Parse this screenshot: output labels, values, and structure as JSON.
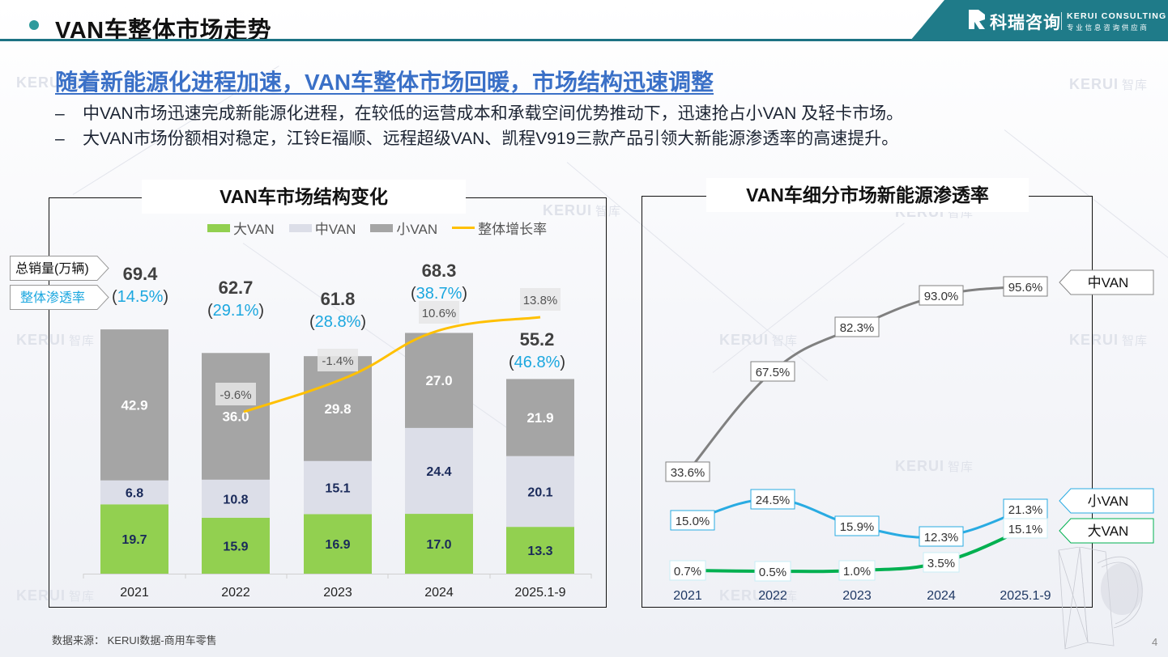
{
  "header": {
    "title": "VAN车整体市场走势",
    "brand_cn": "科瑞咨询",
    "brand_en": "KERUI CONSULTING",
    "brand_sub": "专业信息咨询供应商",
    "accent_color": "#1f7b89"
  },
  "headline": "随着新能源化进程加速，VAN车整体市场回暖，市场结构迅速调整",
  "bullets": [
    {
      "dash": "–",
      "text": "中VAN市场迅速完成新能源化进程，在较低的运营成本和承载空间优势推动下，迅速抢占小VAN 及轻卡市场。"
    },
    {
      "dash": "–",
      "text": "大VAN市场份额相对稳定，江铃E福顺、远程超级VAN、凯程V919三款产品引领大新能源渗透率的高速提升。"
    }
  ],
  "watermark": {
    "brand": "KERUI",
    "suffix": "智库"
  },
  "left_chart_callouts": {
    "total_label": "总销量(万辆)",
    "penetration_label": "整体渗透率"
  },
  "right_chart_tags": {
    "mid": "中VAN",
    "small": "小VAN",
    "large": "大VAN"
  },
  "source": "数据来源：  KERUI数据-商用车零售",
  "page_number": "4",
  "chart_data": [
    {
      "type": "bar",
      "stacked": true,
      "title": "VAN车市场结构变化",
      "categories": [
        "2021",
        "2022",
        "2023",
        "2024",
        "2025.1-9"
      ],
      "series": [
        {
          "name": "大VAN",
          "color": "#92d050",
          "label_color": "#1a2a5a",
          "values": [
            19.7,
            15.9,
            16.9,
            17.0,
            13.3
          ]
        },
        {
          "name": "中VAN",
          "color": "#dcdee8",
          "label_color": "#1a2a5a",
          "values": [
            6.8,
            10.8,
            15.1,
            24.4,
            20.1
          ]
        },
        {
          "name": "小VAN",
          "color": "#a5a5a5",
          "label_color": "#ffffff",
          "values": [
            42.9,
            36.0,
            29.8,
            27.0,
            21.9
          ]
        }
      ],
      "line_series": {
        "name": "整体增长率",
        "color": "#ffc000",
        "categories": [
          "2022",
          "2023",
          "2024",
          "2025.1-9"
        ],
        "values": [
          "-9.6%",
          "-1.4%",
          "10.6%",
          "13.8%"
        ],
        "numeric": [
          -9.6,
          -1.4,
          10.6,
          13.8
        ]
      },
      "totals": [
        "69.4",
        "62.7",
        "61.8",
        "68.3",
        "55.2"
      ],
      "penetration": [
        "14.5%",
        "29.1%",
        "28.8%",
        "38.7%",
        "46.8%"
      ],
      "legend": [
        "大VAN",
        "中VAN",
        "小VAN",
        "整体增长率"
      ],
      "legend_position": "top",
      "ylabel": "总销量(万辆)",
      "ylim": [
        0,
        75
      ],
      "grid": false
    },
    {
      "type": "line",
      "title": "VAN车细分市场新能源渗透率",
      "categories": [
        "2021",
        "2022",
        "2023",
        "2024",
        "2025.1-9"
      ],
      "series": [
        {
          "name": "中VAN",
          "color": "#808080",
          "label_border": "#808080",
          "values": [
            33.6,
            67.5,
            82.3,
            93.0,
            95.6
          ],
          "labels": [
            "33.6%",
            "67.5%",
            "82.3%",
            "93.0%",
            "95.6%"
          ]
        },
        {
          "name": "小VAN",
          "color": "#29abe2",
          "label_border": "#29abe2",
          "values": [
            15.0,
            24.5,
            15.9,
            12.3,
            21.3
          ],
          "labels": [
            "15.0%",
            "24.5%",
            "15.9%",
            "12.3%",
            "21.3%"
          ]
        },
        {
          "name": "大VAN",
          "color": "#00b050",
          "label_border": "#c9eef5",
          "values": [
            0.7,
            0.5,
            1.0,
            3.5,
            15.1
          ],
          "labels": [
            "0.7%",
            "0.5%",
            "1.0%",
            "3.5%",
            "15.1%"
          ]
        }
      ],
      "ylim": [
        0,
        100
      ],
      "grid": false,
      "legend_position": "right"
    }
  ]
}
